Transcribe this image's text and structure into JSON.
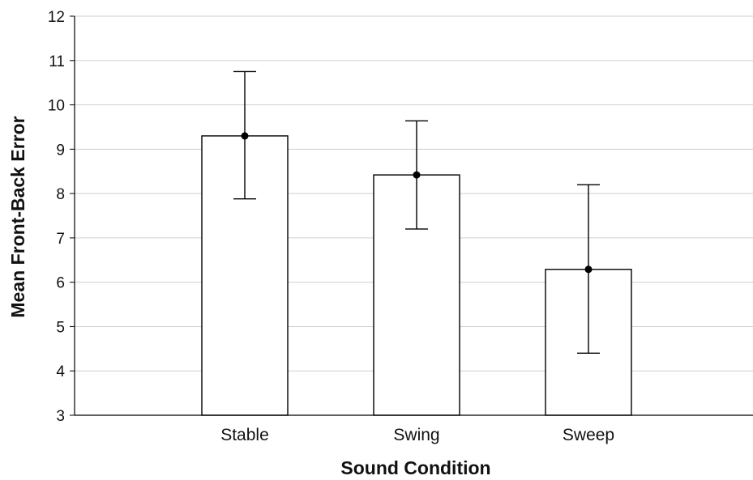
{
  "chart_data": {
    "type": "bar",
    "title": "",
    "xlabel": "Sound Condition",
    "ylabel": "Mean Front-Back Error",
    "categories": [
      "Stable",
      "Swing",
      "Sweep"
    ],
    "series": [
      {
        "values": [
          9.3,
          8.42,
          6.29
        ],
        "error_low": [
          7.88,
          7.2,
          4.4
        ],
        "error_high": [
          10.75,
          9.64,
          8.2
        ]
      }
    ],
    "ylim": [
      3,
      12
    ],
    "yticks": [
      "3",
      "4",
      "5",
      "6",
      "7",
      "8",
      "9",
      "10",
      "11",
      "12"
    ],
    "grid": true,
    "legend": "none",
    "colors": {
      "bar_fill": "#ffffff",
      "bar_stroke": "#000000",
      "grid": "#cfcfcf",
      "axis": "#000000",
      "marker": "#000000"
    }
  }
}
